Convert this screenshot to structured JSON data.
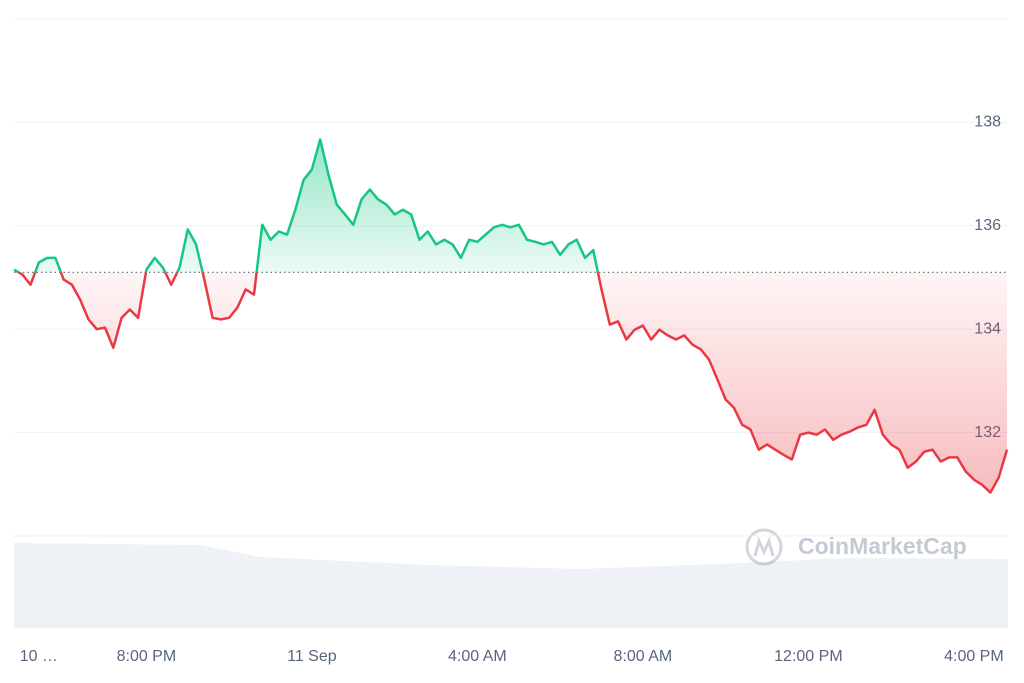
{
  "chart_data": {
    "type": "line",
    "categories": [
      null,
      null,
      null,
      "10 …",
      null,
      null,
      null,
      null,
      null,
      null,
      null,
      null,
      null,
      null,
      null,
      null,
      "8:00 PM",
      null,
      null,
      null,
      null,
      null,
      null,
      null,
      null,
      null,
      null,
      null,
      null,
      null,
      null,
      null,
      null,
      null,
      null,
      null,
      "11 Sep",
      null,
      null,
      null,
      null,
      null,
      null,
      null,
      null,
      null,
      null,
      null,
      null,
      null,
      null,
      null,
      null,
      null,
      null,
      null,
      "4:00 AM",
      null,
      null,
      null,
      null,
      null,
      null,
      null,
      null,
      null,
      null,
      null,
      null,
      null,
      null,
      null,
      null,
      null,
      null,
      null,
      "8:00 AM",
      null,
      null,
      null,
      null,
      null,
      null,
      null,
      null,
      null,
      null,
      null,
      null,
      null,
      null,
      null,
      null,
      null,
      null,
      null,
      "12:00 PM",
      null,
      null,
      null,
      null,
      null,
      null,
      null,
      null,
      null,
      null,
      null,
      null,
      null,
      null,
      null,
      null,
      null,
      null,
      null,
      "4:00 PM",
      null,
      null,
      null,
      null
    ],
    "values": [
      135.15,
      135.06,
      134.86,
      135.29,
      135.38,
      135.38,
      134.96,
      134.86,
      134.57,
      134.19,
      134.0,
      134.03,
      133.64,
      134.22,
      134.38,
      134.22,
      135.15,
      135.38,
      135.19,
      134.86,
      135.19,
      135.93,
      135.64,
      134.96,
      134.22,
      134.19,
      134.22,
      134.42,
      134.77,
      134.67,
      136.02,
      135.73,
      135.89,
      135.83,
      136.31,
      136.89,
      137.09,
      137.67,
      136.99,
      136.41,
      136.22,
      136.02,
      136.51,
      136.7,
      136.51,
      136.41,
      136.22,
      136.31,
      136.22,
      135.73,
      135.89,
      135.64,
      135.73,
      135.64,
      135.38,
      135.73,
      135.69,
      135.83,
      135.97,
      136.02,
      135.97,
      136.02,
      135.73,
      135.69,
      135.64,
      135.69,
      135.44,
      135.64,
      135.73,
      135.38,
      135.53,
      134.77,
      134.09,
      134.15,
      133.8,
      133.99,
      134.07,
      133.8,
      133.99,
      133.88,
      133.8,
      133.88,
      133.7,
      133.61,
      133.41,
      133.03,
      132.64,
      132.48,
      132.15,
      132.06,
      131.67,
      131.77,
      131.67,
      131.57,
      131.48,
      131.96,
      132.0,
      131.96,
      132.06,
      131.86,
      131.96,
      132.02,
      132.1,
      132.15,
      132.44,
      131.96,
      131.77,
      131.67,
      131.32,
      131.44,
      131.63,
      131.67,
      131.44,
      131.52,
      131.52,
      131.25,
      131.09,
      130.99,
      130.84,
      131.13,
      131.67
    ],
    "baseline": 135.1,
    "up_color": "#16c784",
    "down_color": "#ea3943",
    "ylim": [
      130,
      140
    ],
    "yticks": [
      132,
      134,
      136,
      138
    ],
    "grid": true,
    "watermark": "CoinMarketCap"
  }
}
